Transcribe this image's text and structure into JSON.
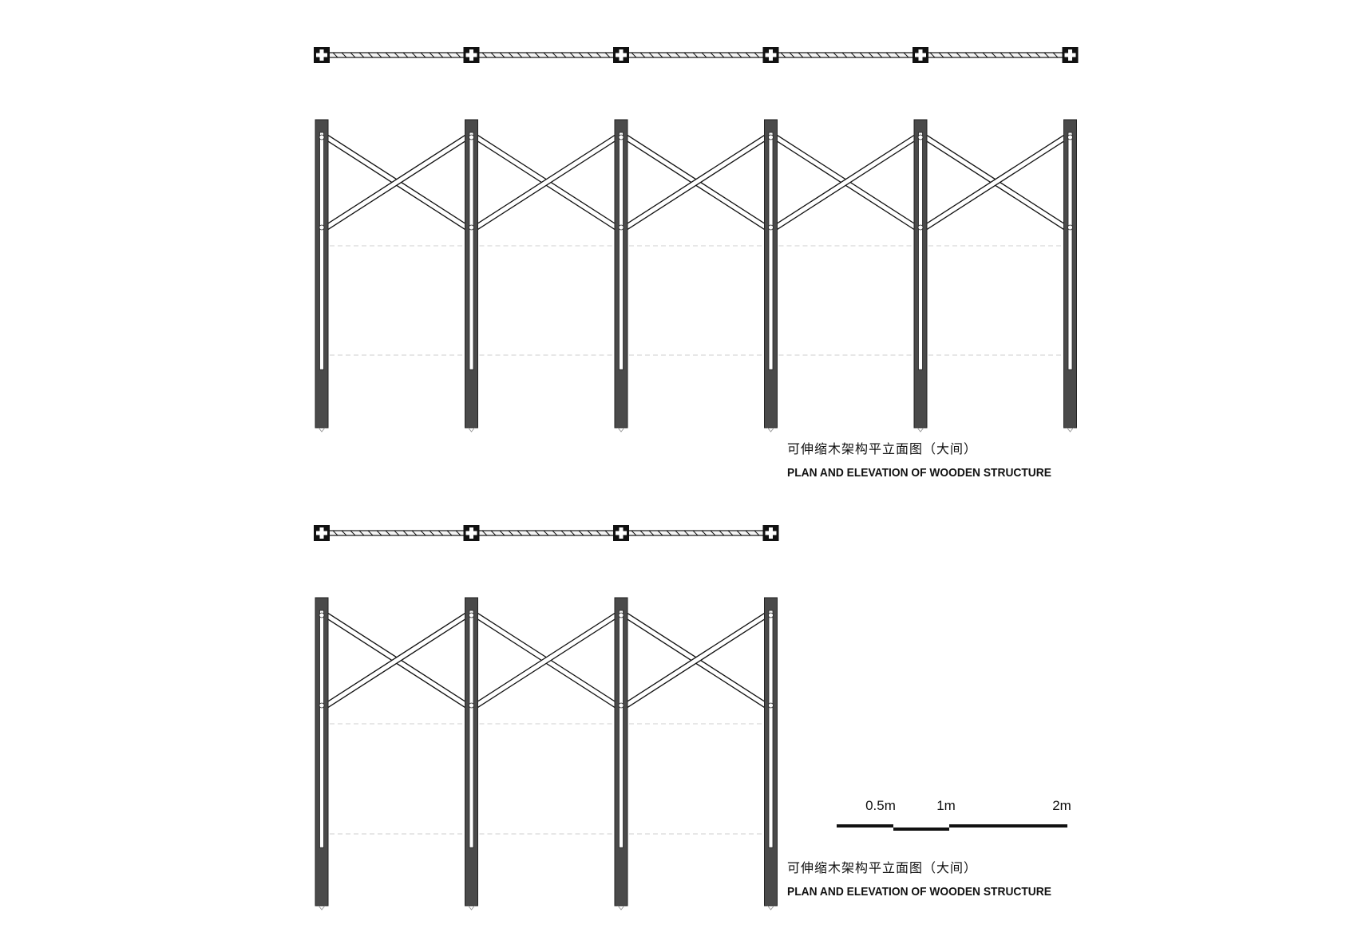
{
  "drawings": [
    {
      "bays": 5,
      "caption_cn": "可伸缩木架构平立面图（大间）",
      "caption_en": "PLAN AND ELEVATION OF WOODEN STRUCTURE"
    },
    {
      "bays": 3,
      "caption_cn": "可伸缩木架构平立面图（大间）",
      "caption_en": "PLAN AND ELEVATION OF WOODEN STRUCTURE"
    }
  ],
  "scale_bar": {
    "labels": [
      "0.5m",
      "1m",
      "2m"
    ]
  },
  "colors": {
    "post": "#4a4a4a",
    "outline": "#111111",
    "guide": "#cfcfcf",
    "background": "#ffffff"
  }
}
